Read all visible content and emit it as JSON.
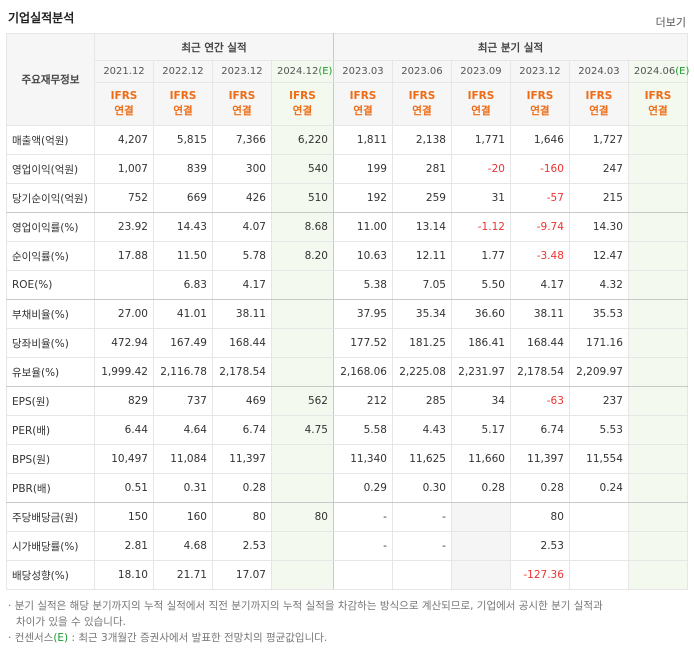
{
  "header": {
    "title": "기업실적분석",
    "more": "더보기"
  },
  "table": {
    "corner": "주요재무정보",
    "groups": [
      "최근 연간 실적",
      "최근 분기 실적"
    ],
    "periods": [
      {
        "date": "2021.12"
      },
      {
        "date": "2022.12"
      },
      {
        "date": "2023.12"
      },
      {
        "date": "2024.12",
        "mark": "(E)"
      },
      {
        "date": "2023.03"
      },
      {
        "date": "2023.06"
      },
      {
        "date": "2023.09"
      },
      {
        "date": "2023.12"
      },
      {
        "date": "2024.03"
      },
      {
        "date": "2024.06",
        "mark": "(E)"
      }
    ],
    "basis": [
      [
        "IFRS",
        "연결"
      ],
      [
        "IFRS",
        "연결"
      ],
      [
        "IFRS",
        "연결"
      ],
      [
        "IFRS",
        "연결"
      ],
      [
        "IFRS",
        "연결"
      ],
      [
        "IFRS",
        "연결"
      ],
      [
        "IFRS",
        "연결"
      ],
      [
        "IFRS",
        "연결"
      ],
      [
        "IFRS",
        "연결"
      ],
      [
        "IFRS",
        "연결"
      ]
    ],
    "rows": [
      {
        "label": "매출액(억원)",
        "values": [
          "4,207",
          "5,815",
          "7,366",
          "6,220",
          "1,811",
          "2,138",
          "1,771",
          "1,646",
          "1,727",
          null
        ]
      },
      {
        "label": "영업이익(억원)",
        "values": [
          "1,007",
          "839",
          "300",
          "540",
          "199",
          "281",
          "-20",
          "-160",
          "247",
          null
        ]
      },
      {
        "label": "당기순이익(억원)",
        "values": [
          "752",
          "669",
          "426",
          "510",
          "192",
          "259",
          "31",
          "-57",
          "215",
          null
        ]
      },
      {
        "label": "영업이익률(%)",
        "values": [
          "23.92",
          "14.43",
          "4.07",
          "8.68",
          "11.00",
          "13.14",
          "-1.12",
          "-9.74",
          "14.30",
          null
        ]
      },
      {
        "label": "순이익률(%)",
        "values": [
          "17.88",
          "11.50",
          "5.78",
          "8.20",
          "10.63",
          "12.11",
          "1.77",
          "-3.48",
          "12.47",
          null
        ]
      },
      {
        "label": "ROE(%)",
        "values": [
          null,
          "6.83",
          "4.17",
          null,
          "5.38",
          "7.05",
          "5.50",
          "4.17",
          "4.32",
          null
        ]
      },
      {
        "label": "부채비율(%)",
        "values": [
          "27.00",
          "41.01",
          "38.11",
          null,
          "37.95",
          "35.34",
          "36.60",
          "38.11",
          "35.53",
          null
        ]
      },
      {
        "label": "당좌비율(%)",
        "values": [
          "472.94",
          "167.49",
          "168.44",
          null,
          "177.52",
          "181.25",
          "186.41",
          "168.44",
          "171.16",
          null
        ]
      },
      {
        "label": "유보율(%)",
        "values": [
          "1,999.42",
          "2,116.78",
          "2,178.54",
          null,
          "2,168.06",
          "2,225.08",
          "2,231.97",
          "2,178.54",
          "2,209.97",
          null
        ]
      },
      {
        "label": "EPS(원)",
        "values": [
          "829",
          "737",
          "469",
          "562",
          "212",
          "285",
          "34",
          "-63",
          "237",
          null
        ]
      },
      {
        "label": "PER(배)",
        "values": [
          "6.44",
          "4.64",
          "6.74",
          "4.75",
          "5.58",
          "4.43",
          "5.17",
          "6.74",
          "5.53",
          null
        ]
      },
      {
        "label": "BPS(원)",
        "values": [
          "10,497",
          "11,084",
          "11,397",
          null,
          "11,340",
          "11,625",
          "11,660",
          "11,397",
          "11,554",
          null
        ]
      },
      {
        "label": "PBR(배)",
        "values": [
          "0.51",
          "0.31",
          "0.28",
          null,
          "0.29",
          "0.30",
          "0.28",
          "0.28",
          "0.24",
          null
        ]
      },
      {
        "label": "주당배당금(원)",
        "values": [
          "150",
          "160",
          "80",
          "80",
          "-",
          "-",
          null,
          "80",
          null,
          null
        ]
      },
      {
        "label": "시가배당률(%)",
        "values": [
          "2.81",
          "4.68",
          "2.53",
          null,
          "-",
          "-",
          null,
          "2.53",
          null,
          null
        ]
      },
      {
        "label": "배당성향(%)",
        "values": [
          "18.10",
          "21.71",
          "17.07",
          null,
          null,
          null,
          null,
          "-127.36",
          null,
          null
        ]
      }
    ]
  },
  "notes": [
    {
      "text": "분기 실적은 해당 분기까지의 누적 실적에서 직전 분기까지의 누적 실적을 차감하는 방식으로 계산되므로, 기업에서 공시한 분기 실적과 차이가 있을 수 있습니다."
    },
    {
      "prefix": "컨센서스",
      "mark": "(E)",
      "text": " : 최근 3개월간 증권사에서 발표한 전망치의 평균값입니다."
    }
  ]
}
